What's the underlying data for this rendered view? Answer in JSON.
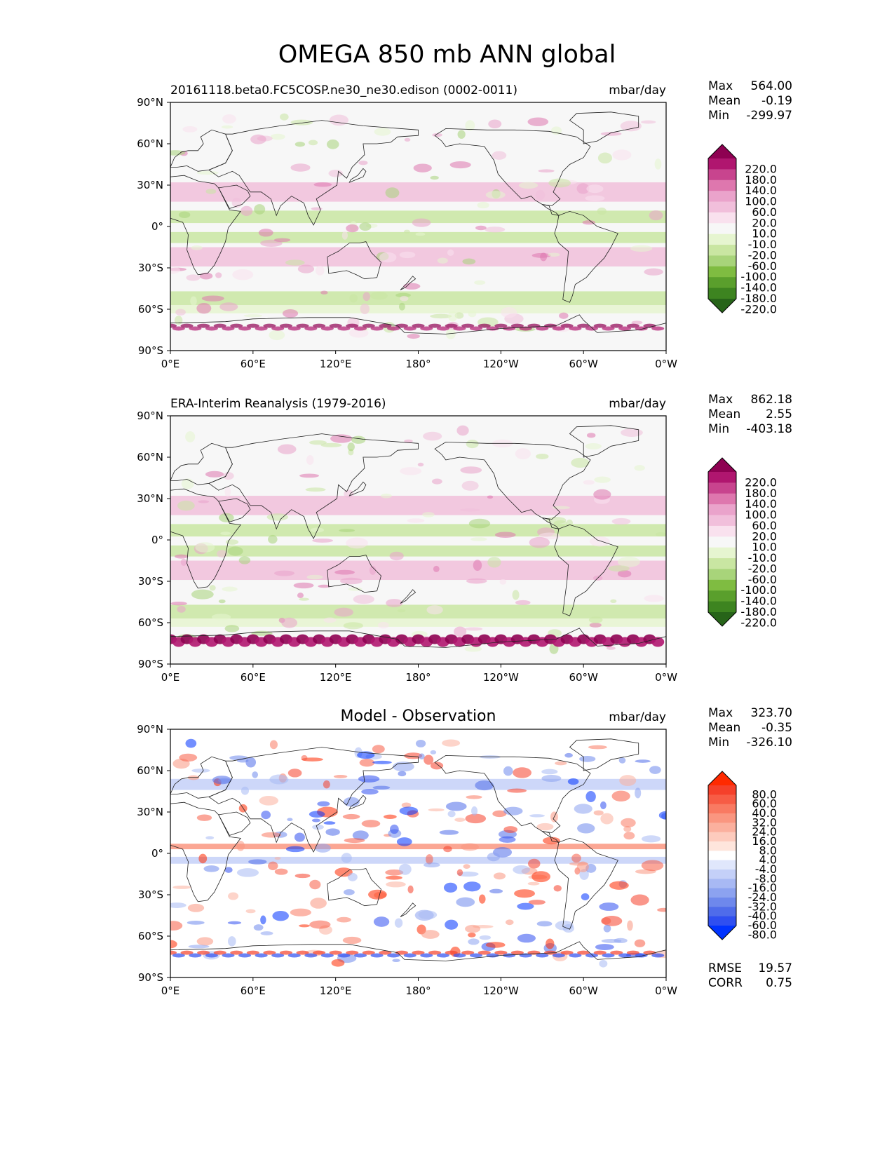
{
  "title": "OMEGA 850 mb ANN global",
  "x_ticks": [
    "0°E",
    "60°E",
    "120°E",
    "180°",
    "120°W",
    "60°W",
    "0°W"
  ],
  "y_ticks": [
    "90°N",
    "60°N",
    "30°N",
    "0°",
    "30°S",
    "60°S",
    "90°S"
  ],
  "panels": [
    {
      "id": "test",
      "title": "20161118.beta0.FC5COSP.ne30_ne30.edison (0002-0011)",
      "title_centered": false,
      "units": "mbar/day",
      "stats": [
        {
          "label": "Max",
          "value": "564.00"
        },
        {
          "label": "Mean",
          "value": "-0.19"
        },
        {
          "label": "Min",
          "value": "-299.97"
        }
      ],
      "colorbar": {
        "labels": [
          "220.0",
          "180.0",
          "140.0",
          "100.0",
          "60.0",
          "20.0",
          "10.0",
          "-10.0",
          "-20.0",
          "-60.0",
          "-100.0",
          "-140.0",
          "-180.0",
          "-220.0"
        ],
        "colors": [
          "#8e0152",
          "#b0166f",
          "#c8448e",
          "#de77ae",
          "#eaa3cb",
          "#f1bfdb",
          "#f9e1ee",
          "#f7f7f7",
          "#e6f5d0",
          "#c9e6a2",
          "#a8d47a",
          "#7fbc41",
          "#5a9f2c",
          "#3d8420",
          "#276419"
        ],
        "colors_note": "top triangle, 14 bins, bottom triangle (top to bottom)"
      }
    },
    {
      "id": "reference",
      "title": "ERA-Interim Reanalysis (1979-2016)",
      "title_centered": false,
      "units": "mbar/day",
      "stats": [
        {
          "label": "Max",
          "value": "862.18"
        },
        {
          "label": "Mean",
          "value": "2.55"
        },
        {
          "label": "Min",
          "value": "-403.18"
        }
      ],
      "colorbar": {
        "labels": [
          "220.0",
          "180.0",
          "140.0",
          "100.0",
          "60.0",
          "20.0",
          "10.0",
          "-10.0",
          "-20.0",
          "-60.0",
          "-100.0",
          "-140.0",
          "-180.0",
          "-220.0"
        ],
        "colors": [
          "#8e0152",
          "#b0166f",
          "#c8448e",
          "#de77ae",
          "#eaa3cb",
          "#f1bfdb",
          "#f9e1ee",
          "#f7f7f7",
          "#e6f5d0",
          "#c9e6a2",
          "#a8d47a",
          "#7fbc41",
          "#5a9f2c",
          "#3d8420",
          "#276419"
        ]
      }
    },
    {
      "id": "difference",
      "title": "Model - Observation",
      "title_centered": true,
      "units": "mbar/day",
      "stats": [
        {
          "label": "Max",
          "value": "323.70"
        },
        {
          "label": "Mean",
          "value": "-0.35"
        },
        {
          "label": "Min",
          "value": "-326.10"
        }
      ],
      "extra_stats": [
        {
          "label": "RMSE",
          "value": "19.57"
        },
        {
          "label": "CORR",
          "value": "0.75"
        }
      ],
      "colorbar": {
        "labels": [
          "80.0",
          "60.0",
          "40.0",
          "32.0",
          "24.0",
          "16.0",
          "8.0",
          "4.0",
          "-4.0",
          "-8.0",
          "-16.0",
          "-24.0",
          "-32.0",
          "-40.0",
          "-60.0",
          "-80.0"
        ],
        "colors": [
          "#ff2a00",
          "#f5402a",
          "#f75c45",
          "#f97a62",
          "#fa9680",
          "#fbb09e",
          "#fdcbbd",
          "#fee5dc",
          "#ffffff",
          "#e0e7fc",
          "#c4d0f8",
          "#a8b9f4",
          "#8ca2f0",
          "#6e88ec",
          "#4f6cea",
          "#2f4ff0",
          "#0033ff"
        ]
      }
    }
  ]
}
